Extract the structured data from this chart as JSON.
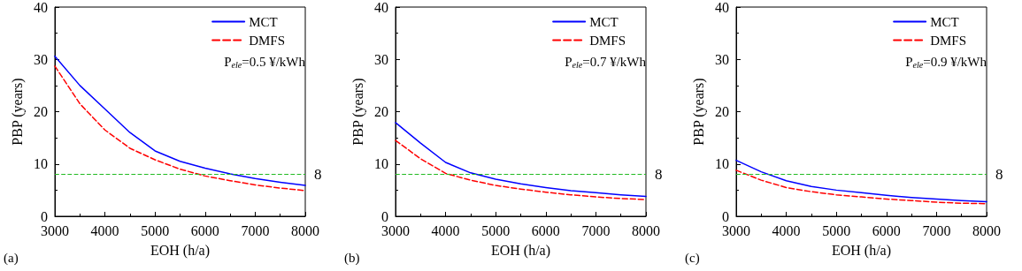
{
  "chart_data": [
    {
      "type": "line",
      "xlabel": "EOH (h/a)",
      "ylabel": "PBP (years)",
      "x": [
        3000,
        3500,
        4000,
        4500,
        5000,
        5500,
        6000,
        6500,
        7000,
        7500,
        8000
      ],
      "xlim": [
        3000,
        8000
      ],
      "xticks": [
        3000,
        4000,
        5000,
        6000,
        7000,
        8000
      ],
      "ylim": [
        0,
        40
      ],
      "yticks": [
        0,
        10,
        20,
        30,
        40
      ],
      "grid": false,
      "legend": "top right",
      "marker": "none",
      "series": [
        {
          "name": "MCT",
          "color": "#0000ff",
          "line_style": "solid",
          "values": [
            30.6,
            25.0,
            20.5,
            16.0,
            12.5,
            10.5,
            9.2,
            8.1,
            7.2,
            6.5,
            5.9
          ]
        },
        {
          "name": "DMFS",
          "color": "#ff0000",
          "line_style": "dashed",
          "values": [
            28.7,
            21.5,
            16.5,
            13.0,
            10.8,
            9.0,
            7.7,
            6.8,
            6.0,
            5.4,
            4.9
          ]
        }
      ],
      "ref_lines": [
        {
          "axis": "y",
          "value": 8,
          "label": "8",
          "color": "#22bb22",
          "line_style": "dashed"
        }
      ],
      "annotations": [
        "P$_{ele}$=0.5 ¥/kWh",
        "(a)"
      ]
    },
    {
      "type": "line",
      "xlabel": "EOH (h/a)",
      "ylabel": "PBP (years)",
      "x": [
        3000,
        3500,
        4000,
        4500,
        5000,
        5500,
        6000,
        6500,
        7000,
        7500,
        8000
      ],
      "xlim": [
        3000,
        8000
      ],
      "xticks": [
        3000,
        4000,
        5000,
        6000,
        7000,
        8000
      ],
      "ylim": [
        0,
        40
      ],
      "yticks": [
        0,
        10,
        20,
        30,
        40
      ],
      "grid": false,
      "legend": "top right",
      "marker": "none",
      "series": [
        {
          "name": "MCT",
          "color": "#0000ff",
          "line_style": "solid",
          "values": [
            17.9,
            14.0,
            10.3,
            8.3,
            7.1,
            6.2,
            5.5,
            4.9,
            4.5,
            4.1,
            3.8
          ]
        },
        {
          "name": "DMFS",
          "color": "#ff0000",
          "line_style": "dashed",
          "values": [
            14.5,
            11.0,
            8.2,
            6.9,
            5.9,
            5.2,
            4.6,
            4.1,
            3.7,
            3.4,
            3.2
          ]
        }
      ],
      "ref_lines": [
        {
          "axis": "y",
          "value": 8,
          "label": "8",
          "color": "#22bb22",
          "line_style": "dashed"
        }
      ],
      "annotations": [
        "P$_{ele}$=0.7 ¥/kWh",
        "(b)"
      ]
    },
    {
      "type": "line",
      "xlabel": "EOH (h/a)",
      "ylabel": "PBP (years)",
      "x": [
        3000,
        3500,
        4000,
        4500,
        5000,
        5500,
        6000,
        6500,
        7000,
        7500,
        8000
      ],
      "xlim": [
        3000,
        8000
      ],
      "xticks": [
        3000,
        4000,
        5000,
        6000,
        7000,
        8000
      ],
      "ylim": [
        0,
        40
      ],
      "yticks": [
        0,
        10,
        20,
        30,
        40
      ],
      "grid": false,
      "legend": "top right",
      "marker": "none",
      "series": [
        {
          "name": "MCT",
          "color": "#0000ff",
          "line_style": "solid",
          "values": [
            10.7,
            8.5,
            6.8,
            5.7,
            5.0,
            4.5,
            4.0,
            3.6,
            3.3,
            3.0,
            2.8
          ]
        },
        {
          "name": "DMFS",
          "color": "#ff0000",
          "line_style": "dashed",
          "values": [
            8.8,
            6.9,
            5.5,
            4.7,
            4.1,
            3.7,
            3.3,
            3.0,
            2.7,
            2.5,
            2.4
          ]
        }
      ],
      "ref_lines": [
        {
          "axis": "y",
          "value": 8,
          "label": "8",
          "color": "#22bb22",
          "line_style": "dashed"
        }
      ],
      "annotations": [
        "P$_{ele}$=0.9 ¥/kWh",
        "(c)"
      ]
    }
  ]
}
